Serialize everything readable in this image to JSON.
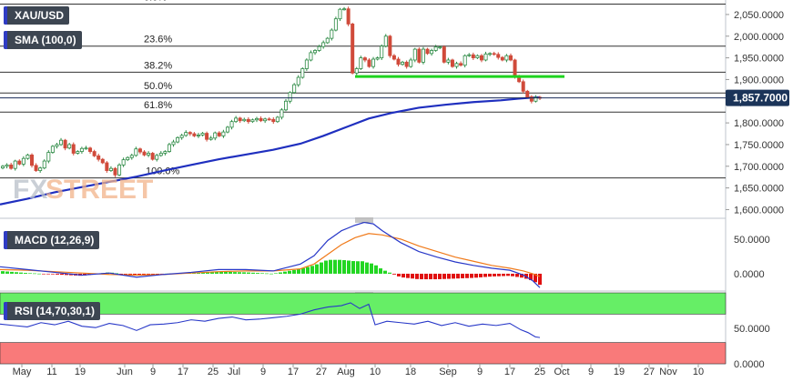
{
  "panels": {
    "price": {
      "symbol": "XAU/USD",
      "indicator": "SMA (100,0)",
      "current_price": "1,857.7000",
      "accent": "#2f3cc4"
    },
    "macd": {
      "title": "MACD (12,26,9)",
      "accent": "#2f3cc4"
    },
    "rsi": {
      "title": "RSI (14,70,30,1)",
      "accent": "#2f3cc4"
    }
  },
  "watermark": {
    "part1": "FX",
    "part2": "STREET"
  },
  "chart_data": [
    {
      "type": "candlestick",
      "name": "XAU/USD daily",
      "y_ticks": [
        "2,050.0000",
        "2,000.0000",
        "1,950.0000",
        "1,900.0000",
        "1,850.0000",
        "1,800.0000",
        "1,750.0000",
        "1,700.0000",
        "1,650.0000",
        "1,600.0000"
      ],
      "y_tick_values": [
        2050,
        2000,
        1950,
        1900,
        1850,
        1800,
        1750,
        1700,
        1650,
        1600
      ],
      "ylim": [
        1580,
        2075
      ],
      "x_ticks": [
        "May",
        "11",
        "19",
        "Jun",
        "9",
        "17",
        "25",
        "Jul",
        "9",
        "17",
        "27",
        "Aug",
        "10",
        "18",
        "Sep",
        "9",
        "17",
        "25",
        "Oct",
        "9",
        "19",
        "27",
        "Nov",
        "10"
      ],
      "fibonacci": [
        {
          "label": "0.0%",
          "value": 2074
        },
        {
          "label": "23.6%",
          "value": 1977
        },
        {
          "label": "38.2%",
          "value": 1917
        },
        {
          "label": "50.0%",
          "value": 1869
        },
        {
          "label": "61.8%",
          "value": 1825
        },
        {
          "label": "100.0%",
          "value": 1673
        }
      ],
      "support_line": {
        "value": 1907,
        "color": "#1fd41f"
      },
      "current_price": 1857.7,
      "closes": [
        1700,
        1703,
        1695,
        1712,
        1705,
        1718,
        1726,
        1702,
        1690,
        1696,
        1712,
        1732,
        1746,
        1750,
        1760,
        1742,
        1750,
        1730,
        1734,
        1741,
        1742,
        1734,
        1724,
        1716,
        1708,
        1690,
        1695,
        1680,
        1703,
        1715,
        1720,
        1725,
        1740,
        1733,
        1726,
        1730,
        1716,
        1725,
        1730,
        1734,
        1750,
        1756,
        1766,
        1771,
        1778,
        1775,
        1770,
        1772,
        1776,
        1762,
        1765,
        1777,
        1770,
        1779,
        1790,
        1803,
        1811,
        1805,
        1808,
        1803,
        1807,
        1810,
        1805,
        1809,
        1808,
        1803,
        1813,
        1830,
        1850,
        1870,
        1888,
        1905,
        1925,
        1945,
        1962,
        1967,
        1976,
        1985,
        1995,
        2014,
        2040,
        2062,
        2063,
        2028,
        1915,
        1925,
        1950,
        1945,
        1930,
        1947,
        1950,
        1977,
        2000,
        1955,
        1947,
        1935,
        1940,
        1930,
        1945,
        1970,
        1940,
        1970,
        1960,
        1967,
        1975,
        1975,
        1940,
        1945,
        1930,
        1937,
        1933,
        1955,
        1957,
        1950,
        1955,
        1945,
        1959,
        1960,
        1958,
        1951,
        1945,
        1955,
        1945,
        1907,
        1895,
        1873,
        1860,
        1850,
        1859,
        1857.7
      ],
      "sma": [
        [
          0,
          1612
        ],
        [
          30,
          1625
        ],
        [
          60,
          1640
        ],
        [
          90,
          1652
        ],
        [
          120,
          1664
        ],
        [
          150,
          1676
        ],
        [
          180,
          1690
        ],
        [
          210,
          1703
        ],
        [
          240,
          1716
        ],
        [
          270,
          1727
        ],
        [
          300,
          1738
        ],
        [
          330,
          1752
        ],
        [
          355,
          1770
        ],
        [
          380,
          1790
        ],
        [
          405,
          1810
        ],
        [
          430,
          1823
        ],
        [
          460,
          1835
        ],
        [
          490,
          1842
        ],
        [
          520,
          1848
        ],
        [
          550,
          1852
        ],
        [
          570,
          1856
        ],
        [
          583,
          1858
        ],
        [
          593,
          1859
        ]
      ]
    },
    {
      "type": "macd",
      "y_ticks": [
        "50.0000",
        "0.0000"
      ],
      "y_tick_values": [
        50,
        0
      ],
      "ylim": [
        -25,
        80
      ],
      "macd_line": [
        [
          0,
          10
        ],
        [
          30,
          6
        ],
        [
          60,
          2
        ],
        [
          90,
          -2
        ],
        [
          120,
          1
        ],
        [
          150,
          -5
        ],
        [
          180,
          -1
        ],
        [
          210,
          2
        ],
        [
          240,
          6
        ],
        [
          270,
          6
        ],
        [
          300,
          4
        ],
        [
          330,
          14
        ],
        [
          345,
          26
        ],
        [
          360,
          48
        ],
        [
          375,
          62
        ],
        [
          390,
          70
        ],
        [
          400,
          74
        ],
        [
          410,
          72
        ],
        [
          420,
          62
        ],
        [
          440,
          45
        ],
        [
          460,
          32
        ],
        [
          480,
          24
        ],
        [
          500,
          17
        ],
        [
          520,
          12
        ],
        [
          540,
          8
        ],
        [
          560,
          5
        ],
        [
          575,
          -2
        ],
        [
          585,
          -10
        ],
        [
          593,
          -20
        ]
      ],
      "signal_line": [
        [
          0,
          6
        ],
        [
          30,
          5
        ],
        [
          60,
          3
        ],
        [
          90,
          1
        ],
        [
          120,
          -1
        ],
        [
          150,
          -2
        ],
        [
          180,
          -1
        ],
        [
          210,
          1
        ],
        [
          240,
          3
        ],
        [
          270,
          4
        ],
        [
          300,
          4
        ],
        [
          330,
          7
        ],
        [
          345,
          14
        ],
        [
          360,
          28
        ],
        [
          375,
          42
        ],
        [
          390,
          52
        ],
        [
          405,
          58
        ],
        [
          420,
          56
        ],
        [
          440,
          50
        ],
        [
          460,
          40
        ],
        [
          480,
          32
        ],
        [
          500,
          24
        ],
        [
          520,
          18
        ],
        [
          540,
          12
        ],
        [
          560,
          8
        ],
        [
          575,
          4
        ],
        [
          585,
          0
        ],
        [
          593,
          -4
        ]
      ],
      "histogram_color_positive": "#22d622",
      "histogram_color_negative": "#e01010"
    },
    {
      "type": "rsi",
      "y_ticks": [
        "50.0000",
        "0.0000"
      ],
      "y_tick_values": [
        50,
        0
      ],
      "ylim": [
        0,
        100
      ],
      "overbought": 70,
      "oversold": 30,
      "overbought_color": "#66ee66",
      "oversold_color": "#f97a7a",
      "rsi_line": [
        [
          0,
          56
        ],
        [
          15,
          54
        ],
        [
          30,
          52
        ],
        [
          45,
          58
        ],
        [
          60,
          55
        ],
        [
          75,
          60
        ],
        [
          90,
          53
        ],
        [
          105,
          51
        ],
        [
          120,
          57
        ],
        [
          135,
          54
        ],
        [
          150,
          47
        ],
        [
          165,
          55
        ],
        [
          180,
          56
        ],
        [
          195,
          58
        ],
        [
          210,
          62
        ],
        [
          225,
          60
        ],
        [
          240,
          64
        ],
        [
          255,
          66
        ],
        [
          270,
          62
        ],
        [
          285,
          63
        ],
        [
          300,
          65
        ],
        [
          315,
          67
        ],
        [
          330,
          70
        ],
        [
          345,
          76
        ],
        [
          360,
          80
        ],
        [
          375,
          82
        ],
        [
          385,
          86
        ],
        [
          395,
          78
        ],
        [
          405,
          84
        ],
        [
          412,
          55
        ],
        [
          425,
          60
        ],
        [
          440,
          58
        ],
        [
          455,
          56
        ],
        [
          470,
          60
        ],
        [
          485,
          54
        ],
        [
          500,
          58
        ],
        [
          515,
          53
        ],
        [
          530,
          56
        ],
        [
          545,
          54
        ],
        [
          560,
          57
        ],
        [
          572,
          48
        ],
        [
          580,
          44
        ],
        [
          588,
          38
        ],
        [
          593,
          37
        ]
      ]
    }
  ]
}
